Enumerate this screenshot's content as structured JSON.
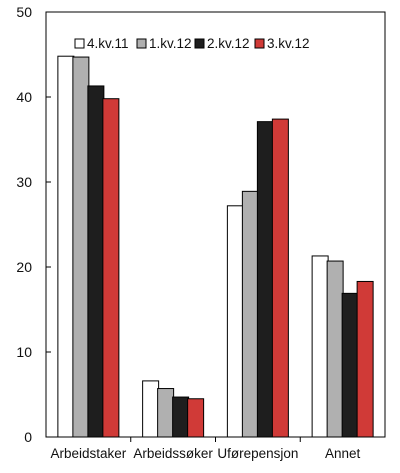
{
  "chart_data": {
    "type": "bar",
    "categories": [
      "Arbeidstaker",
      "Arbeidssøker",
      "Uførepensjon",
      "Annet"
    ],
    "series": [
      {
        "name": "4.kv.11",
        "color": "#ffffff",
        "values": [
          44.8,
          6.6,
          27.2,
          21.3
        ]
      },
      {
        "name": "1.kv.12",
        "color": "#b0b0b0",
        "values": [
          44.7,
          5.7,
          28.9,
          20.7
        ]
      },
      {
        "name": "2.kv.12",
        "color": "#1e1e1e",
        "values": [
          41.3,
          4.7,
          37.1,
          16.9
        ]
      },
      {
        "name": "3.kv.12",
        "color": "#d03a37",
        "values": [
          39.8,
          4.5,
          37.4,
          18.3
        ]
      }
    ],
    "ylim": [
      0,
      50
    ],
    "yticks": [
      0,
      10,
      20,
      30,
      40,
      50
    ],
    "title": "",
    "xlabel": "",
    "ylabel": "",
    "legend_position": "top",
    "grid": false
  }
}
